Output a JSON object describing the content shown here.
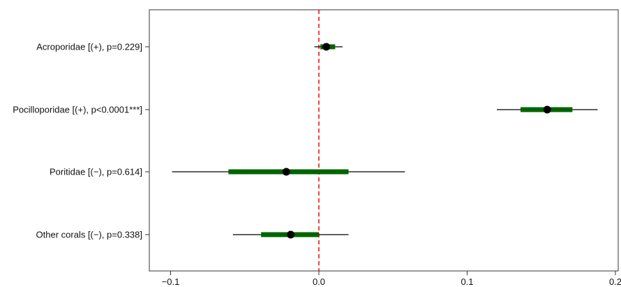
{
  "chart_data": {
    "type": "forest",
    "title": "",
    "xlabel": "",
    "ylabel": "",
    "xlim": [
      -0.105,
      0.2
    ],
    "x_ticks": [
      -0.1,
      0.0,
      0.1,
      0.2
    ],
    "x_tick_labels": [
      "−0.1",
      "0.0",
      "0.1",
      "0.2"
    ],
    "reference_line": 0.0,
    "grid": false,
    "legend": "none",
    "categories": [
      "Acroporidae [(+), p=0.229]",
      "Pocilloporidae [(+), p<0.0001***]",
      "Poritidae [(−), p=0.614]",
      "Other corals [(−), p=0.338]"
    ],
    "estimates": [
      0.005,
      0.154,
      -0.022,
      -0.019
    ],
    "inner_interval": [
      [
        0.001,
        0.011
      ],
      [
        0.136,
        0.171
      ],
      [
        -0.061,
        0.02
      ],
      [
        -0.039,
        0.0
      ]
    ],
    "outer_interval": [
      [
        -0.003,
        0.016
      ],
      [
        0.12,
        0.188
      ],
      [
        -0.099,
        0.058
      ],
      [
        -0.058,
        0.02
      ]
    ],
    "colors": {
      "interval_inner": "#006400",
      "interval_outer": "#000000",
      "point": "#000000",
      "reference_line": "#ff0000"
    }
  }
}
